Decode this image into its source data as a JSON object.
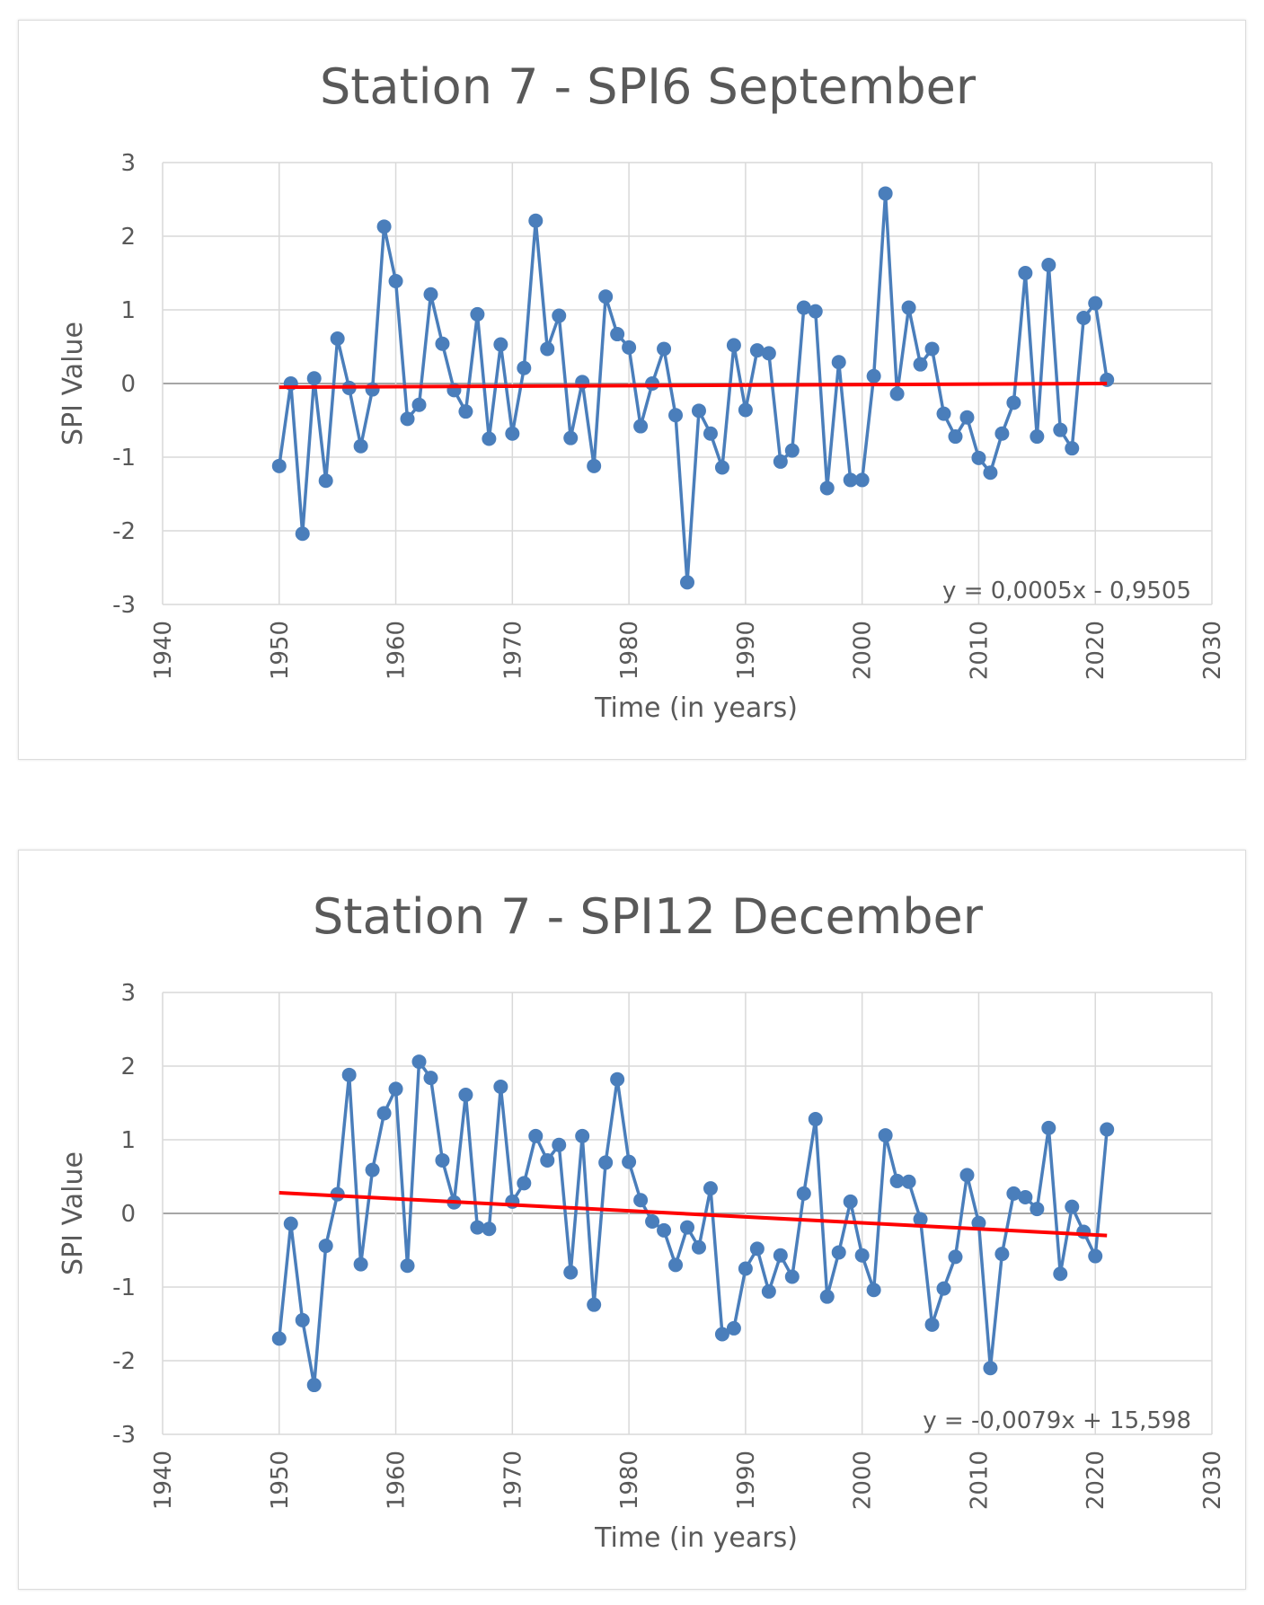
{
  "chart_data": [
    {
      "type": "line",
      "title": "Station 7 - SPI6 September",
      "xlabel": "Time (in years)",
      "ylabel": "SPI Value",
      "xlim": [
        1940,
        2030
      ],
      "ylim": [
        -3,
        3
      ],
      "x_ticks": [
        "1940",
        "1950",
        "1960",
        "1970",
        "1980",
        "1990",
        "2000",
        "2010",
        "2020",
        "2030"
      ],
      "y_ticks": [
        "-3",
        "-2",
        "-1",
        "0",
        "1",
        "2",
        "3"
      ],
      "grid": true,
      "series": [
        {
          "name": "SPI6 September",
          "color": "#4a7ebb",
          "x": [
            1950,
            1951,
            1952,
            1953,
            1954,
            1955,
            1956,
            1957,
            1958,
            1959,
            1960,
            1961,
            1962,
            1963,
            1964,
            1965,
            1966,
            1967,
            1968,
            1969,
            1970,
            1971,
            1972,
            1973,
            1974,
            1975,
            1976,
            1977,
            1978,
            1979,
            1980,
            1981,
            1982,
            1983,
            1984,
            1985,
            1986,
            1987,
            1988,
            1989,
            1990,
            1991,
            1992,
            1993,
            1994,
            1995,
            1996,
            1997,
            1998,
            1999,
            2000,
            2001,
            2002,
            2003,
            2004,
            2005,
            2006,
            2007,
            2008,
            2009,
            2010,
            2011,
            2012,
            2013,
            2014,
            2015,
            2016,
            2017,
            2018,
            2019,
            2020,
            2021
          ],
          "values": [
            -1.12,
            0.0,
            -2.04,
            0.07,
            -1.32,
            0.61,
            -0.06,
            -0.85,
            -0.08,
            2.13,
            1.39,
            -0.48,
            -0.29,
            1.21,
            0.54,
            -0.09,
            -0.38,
            0.94,
            -0.75,
            0.53,
            -0.68,
            0.21,
            2.21,
            0.47,
            0.92,
            -0.74,
            0.02,
            -1.12,
            1.18,
            0.67,
            0.49,
            -0.58,
            0.0,
            0.47,
            -0.43,
            -2.7,
            -0.37,
            -0.68,
            -1.14,
            0.52,
            -0.36,
            0.45,
            0.41,
            -1.06,
            -0.91,
            1.03,
            0.98,
            -1.42,
            0.29,
            -1.31,
            -1.31,
            0.1,
            2.58,
            -0.14,
            1.03,
            0.26,
            0.47,
            -0.41,
            -0.72,
            -0.46,
            -1.01,
            -1.21,
            -0.68,
            -0.26,
            1.5,
            -0.72,
            1.61,
            -0.63,
            -0.88,
            0.89,
            1.09,
            0.05
          ]
        }
      ],
      "trendline": {
        "color": "#ff0000",
        "x": [
          1950,
          2021
        ],
        "values": [
          -0.05,
          0.0
        ],
        "equation": "y = 0,0005x - 0,9505"
      }
    },
    {
      "type": "line",
      "title": "Station 7 - SPI12 December",
      "xlabel": "Time (in years)",
      "ylabel": "SPI Value",
      "xlim": [
        1940,
        2030
      ],
      "ylim": [
        -3,
        3
      ],
      "x_ticks": [
        "1940",
        "1950",
        "1960",
        "1970",
        "1980",
        "1990",
        "2000",
        "2010",
        "2020",
        "2030"
      ],
      "y_ticks": [
        "-3",
        "-2",
        "-1",
        "0",
        "1",
        "2",
        "3"
      ],
      "grid": true,
      "series": [
        {
          "name": "SPI12 December",
          "color": "#4a7ebb",
          "x": [
            1950,
            1951,
            1952,
            1953,
            1954,
            1955,
            1956,
            1957,
            1958,
            1959,
            1960,
            1961,
            1962,
            1963,
            1964,
            1965,
            1966,
            1967,
            1968,
            1969,
            1970,
            1971,
            1972,
            1973,
            1974,
            1975,
            1976,
            1977,
            1978,
            1979,
            1980,
            1981,
            1982,
            1983,
            1984,
            1985,
            1986,
            1987,
            1988,
            1989,
            1990,
            1991,
            1992,
            1993,
            1994,
            1995,
            1996,
            1997,
            1998,
            1999,
            2000,
            2001,
            2002,
            2003,
            2004,
            2005,
            2006,
            2007,
            2008,
            2009,
            2010,
            2011,
            2012,
            2013,
            2014,
            2015,
            2016,
            2017,
            2018,
            2019,
            2020,
            2021
          ],
          "values": [
            -1.7,
            -0.14,
            -1.45,
            -2.33,
            -0.44,
            0.26,
            1.88,
            -0.69,
            0.59,
            1.36,
            1.69,
            -0.71,
            2.06,
            1.84,
            0.72,
            0.15,
            1.61,
            -0.19,
            -0.21,
            1.72,
            0.16,
            0.41,
            1.05,
            0.72,
            0.93,
            -0.8,
            1.05,
            -1.24,
            0.69,
            1.82,
            0.7,
            0.18,
            -0.11,
            -0.23,
            -0.7,
            -0.19,
            -0.46,
            0.34,
            -1.64,
            -1.56,
            -0.75,
            -0.48,
            -1.06,
            -0.57,
            -0.86,
            0.27,
            1.28,
            -1.13,
            -0.53,
            0.16,
            -0.57,
            -1.04,
            1.06,
            0.44,
            0.43,
            -0.08,
            -1.51,
            -1.02,
            -0.59,
            0.52,
            -0.13,
            -2.1,
            -0.55,
            0.27,
            0.22,
            0.06,
            1.16,
            -0.82,
            0.09,
            -0.25,
            -0.58,
            1.14
          ]
        }
      ],
      "trendline": {
        "color": "#ff0000",
        "x": [
          1950,
          2021
        ],
        "values": [
          0.28,
          -0.3
        ],
        "equation": "y = -0,0079x + 15,598"
      }
    }
  ]
}
